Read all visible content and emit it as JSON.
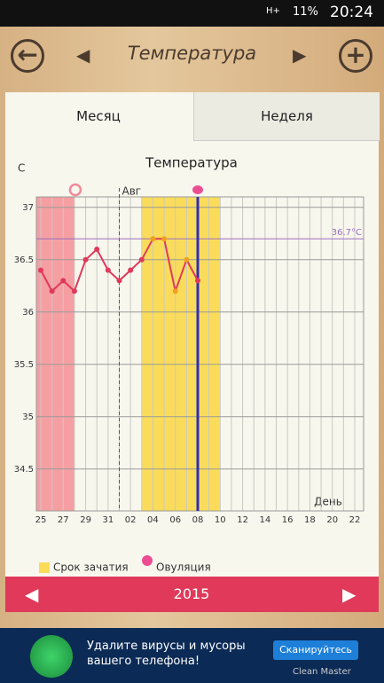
{
  "status_bar": {
    "battery": "11%",
    "time": "20:24",
    "network": "H+"
  },
  "header": {
    "title": "Температура"
  },
  "tabs": [
    "Месяц",
    "Неделя"
  ],
  "chart_data": {
    "type": "line",
    "title": "Температура",
    "y_label": "С",
    "x_label": "День",
    "categories": [
      "25",
      null,
      "27",
      null,
      "29",
      null,
      "31",
      null,
      "02",
      null,
      "04",
      null,
      "06",
      null,
      "08",
      null,
      "10",
      null,
      "12",
      null,
      "14",
      null,
      "16",
      null,
      "18",
      null,
      "20",
      null,
      "22"
    ],
    "series": [
      {
        "name": "Температура",
        "color": "#e0395a",
        "values": [
          36.4,
          36.2,
          36.3,
          36.2,
          36.5,
          36.6,
          36.4,
          36.3,
          36.4,
          36.5,
          36.7,
          36.7,
          36.2,
          36.5,
          36.3,
          null,
          null,
          null,
          null,
          null,
          null,
          null,
          null,
          null,
          null,
          null,
          null,
          null,
          null
        ]
      }
    ],
    "ylim": [
      34.1,
      37.1
    ],
    "yticks": [
      34.5,
      35,
      35.5,
      36,
      36.5,
      37
    ],
    "grid": true,
    "reference_line": {
      "value": 36.7,
      "label": "36.7°C",
      "color": "#9b6fc0"
    },
    "month_marker": {
      "index": 7,
      "label": "Авг"
    },
    "period": {
      "from": 0,
      "to": 3,
      "color": "#f59fa3"
    },
    "fertile": {
      "from": 9,
      "to": 16,
      "color": "#fbdc5a"
    },
    "ovulation": {
      "index": 14,
      "color": "#2f2fb5"
    }
  },
  "legend": [
    "Срок зачатия",
    "Овуляция"
  ],
  "footer": {
    "year": "2015"
  },
  "ad": {
    "text": "Удалите вирусы и мусоры вашего телефона!",
    "button": "Сканируйтесь",
    "brand": "Clean Master"
  }
}
